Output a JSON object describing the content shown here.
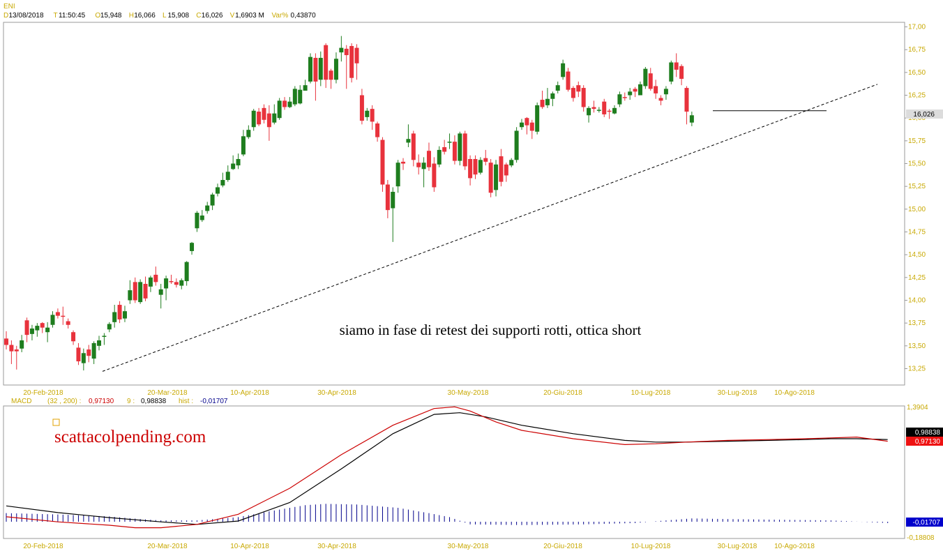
{
  "header": {
    "symbol": "ENI",
    "fields": [
      {
        "key": "D",
        "value": "13/08/2018"
      },
      {
        "key": "T",
        "value": "11:50:45"
      },
      {
        "key": "O",
        "value": "15,948"
      },
      {
        "key": "H",
        "value": "16,066"
      },
      {
        "key": "L",
        "value": "15,908"
      },
      {
        "key": "C",
        "value": "16,026"
      },
      {
        "key": "V",
        "value": "1,6903 M"
      },
      {
        "key": "Var%",
        "value": "0,43870"
      }
    ]
  },
  "chart_data": [
    {
      "type": "candlestick",
      "price_badge": "16,026",
      "y_ticks": [
        "17,00",
        "16,75",
        "16,50",
        "16,25",
        "16,00",
        "15,75",
        "15,50",
        "15,25",
        "15,00",
        "14,75",
        "14,50",
        "14,25",
        "14,00",
        "13,75",
        "13,50",
        "13,25"
      ],
      "x_ticks": [
        "20-Feb-2018",
        "20-Mar-2018",
        "10-Apr-2018",
        "30-Apr-2018",
        "30-May-2018",
        "20-Giu-2018",
        "10-Lug-2018",
        "30-Lug-2018",
        "10-Ago-2018"
      ],
      "ylim": [
        13.07,
        17.05
      ],
      "annotation": "siamo in fase di retest dei supporti rotti, ottica short",
      "candles": [
        [
          13.58,
          13.51,
          13.66,
          13.46
        ],
        [
          13.51,
          13.44,
          13.56,
          13.3
        ],
        [
          13.46,
          13.44,
          13.5,
          13.24
        ],
        [
          13.47,
          13.56,
          13.62,
          13.43
        ],
        [
          13.78,
          13.62,
          13.81,
          13.54
        ],
        [
          13.63,
          13.69,
          13.73,
          13.56
        ],
        [
          13.67,
          13.72,
          13.75,
          13.6
        ],
        [
          13.75,
          13.7,
          13.76,
          13.64
        ],
        [
          13.65,
          13.7,
          13.76,
          13.54
        ],
        [
          13.73,
          13.84,
          13.88,
          13.7
        ],
        [
          13.87,
          13.83,
          13.91,
          13.8
        ],
        [
          13.83,
          13.82,
          13.93,
          13.73
        ],
        [
          13.77,
          13.73,
          13.8,
          13.69
        ],
        [
          13.65,
          13.55,
          13.67,
          13.51
        ],
        [
          13.48,
          13.33,
          13.53,
          13.29
        ],
        [
          13.31,
          13.42,
          13.47,
          13.23
        ],
        [
          13.46,
          13.39,
          13.51,
          13.32
        ],
        [
          13.36,
          13.53,
          13.55,
          13.3
        ],
        [
          13.5,
          13.56,
          13.61,
          13.45
        ],
        [
          13.6,
          13.61,
          13.64,
          13.51
        ],
        [
          13.68,
          13.74,
          13.76,
          13.65
        ],
        [
          13.76,
          13.87,
          13.95,
          13.7
        ],
        [
          13.95,
          13.79,
          13.99,
          13.75
        ],
        [
          13.8,
          13.88,
          13.94,
          13.76
        ],
        [
          14.0,
          14.11,
          14.22,
          13.96
        ],
        [
          14.2,
          14.0,
          14.25,
          13.97
        ],
        [
          13.98,
          14.2,
          14.23,
          13.96
        ],
        [
          14.18,
          14.02,
          14.26,
          13.99
        ],
        [
          14.15,
          14.25,
          14.27,
          14.09
        ],
        [
          14.28,
          14.2,
          14.37,
          14.16
        ],
        [
          14.06,
          14.12,
          14.18,
          13.91
        ],
        [
          14.13,
          14.24,
          14.27,
          14.0
        ],
        [
          14.21,
          14.2,
          14.28,
          14.18
        ],
        [
          14.2,
          14.17,
          14.24,
          14.14
        ],
        [
          14.16,
          14.22,
          14.24,
          14.12
        ],
        [
          14.21,
          14.42,
          14.43,
          14.16
        ],
        [
          14.54,
          14.63,
          14.64,
          14.5
        ],
        [
          14.79,
          14.96,
          14.98,
          14.75
        ],
        [
          14.88,
          14.93,
          14.99,
          14.86
        ],
        [
          14.98,
          15.04,
          15.08,
          14.95
        ],
        [
          15.04,
          15.16,
          15.18,
          14.99
        ],
        [
          15.17,
          15.24,
          15.28,
          15.14
        ],
        [
          15.26,
          15.32,
          15.4,
          15.24
        ],
        [
          15.32,
          15.41,
          15.48,
          15.3
        ],
        [
          15.44,
          15.5,
          15.59,
          15.43
        ],
        [
          15.48,
          15.55,
          15.61,
          15.44
        ],
        [
          15.6,
          15.8,
          15.87,
          15.58
        ],
        [
          15.79,
          15.87,
          15.92,
          15.77
        ],
        [
          15.9,
          16.08,
          16.1,
          15.86
        ],
        [
          16.07,
          15.93,
          16.11,
          15.91
        ],
        [
          16.11,
          15.98,
          16.15,
          15.94
        ],
        [
          16.05,
          15.9,
          16.14,
          15.75
        ],
        [
          15.95,
          16.05,
          16.15,
          15.93
        ],
        [
          16.0,
          16.19,
          16.22,
          15.98
        ],
        [
          16.19,
          16.12,
          16.23,
          16.09
        ],
        [
          16.12,
          16.18,
          16.23,
          16.11
        ],
        [
          16.15,
          16.32,
          16.35,
          16.13
        ],
        [
          16.16,
          16.31,
          16.36,
          16.15
        ],
        [
          16.3,
          16.36,
          16.42,
          16.3
        ],
        [
          16.4,
          16.67,
          16.71,
          16.38
        ],
        [
          16.66,
          16.4,
          16.71,
          16.19
        ],
        [
          16.42,
          16.66,
          16.73,
          16.35
        ],
        [
          16.8,
          16.42,
          16.82,
          16.33
        ],
        [
          16.52,
          16.42,
          16.54,
          16.32
        ],
        [
          16.42,
          16.65,
          16.72,
          16.38
        ],
        [
          16.72,
          16.77,
          16.9,
          16.62
        ],
        [
          16.76,
          16.69,
          16.8,
          16.32
        ],
        [
          16.79,
          16.44,
          16.82,
          16.39
        ],
        [
          16.77,
          16.6,
          16.81,
          16.42
        ],
        [
          16.25,
          15.97,
          16.32,
          15.93
        ],
        [
          16.01,
          16.08,
          16.11,
          15.97
        ],
        [
          16.1,
          15.96,
          16.14,
          15.87
        ],
        [
          15.94,
          15.79,
          15.96,
          15.74
        ],
        [
          15.76,
          15.27,
          15.79,
          15.19
        ],
        [
          15.27,
          14.99,
          15.32,
          14.9
        ],
        [
          15.01,
          15.19,
          15.24,
          14.64
        ],
        [
          15.25,
          15.51,
          15.54,
          15.18
        ],
        [
          15.52,
          15.5,
          15.56,
          15.43
        ],
        [
          15.73,
          15.77,
          15.93,
          15.68
        ],
        [
          15.83,
          15.54,
          15.86,
          15.47
        ],
        [
          15.51,
          15.46,
          15.6,
          15.38
        ],
        [
          15.44,
          15.51,
          15.57,
          15.24
        ],
        [
          15.64,
          15.46,
          15.73,
          15.42
        ],
        [
          15.5,
          15.24,
          15.57,
          15.19
        ],
        [
          15.49,
          15.65,
          15.69,
          15.46
        ],
        [
          15.68,
          15.63,
          15.76,
          15.6
        ],
        [
          15.73,
          15.74,
          15.83,
          15.66
        ],
        [
          15.74,
          15.53,
          15.81,
          15.49
        ],
        [
          15.53,
          15.83,
          15.85,
          15.48
        ],
        [
          15.83,
          15.47,
          15.86,
          15.43
        ],
        [
          15.55,
          15.34,
          15.59,
          15.26
        ],
        [
          15.55,
          15.38,
          15.59,
          15.33
        ],
        [
          15.4,
          15.54,
          15.57,
          15.38
        ],
        [
          15.56,
          15.52,
          15.65,
          15.48
        ],
        [
          15.51,
          15.18,
          15.55,
          15.13
        ],
        [
          15.21,
          15.49,
          15.54,
          15.14
        ],
        [
          15.58,
          15.3,
          15.66,
          15.25
        ],
        [
          15.49,
          15.37,
          15.51,
          15.3
        ],
        [
          15.48,
          15.54,
          15.56,
          15.46
        ],
        [
          15.54,
          15.86,
          15.9,
          15.51
        ],
        [
          15.9,
          15.95,
          15.99,
          15.87
        ],
        [
          16.0,
          15.92,
          16.01,
          15.82
        ],
        [
          15.95,
          15.86,
          15.98,
          15.77
        ],
        [
          15.85,
          16.14,
          16.17,
          15.82
        ],
        [
          16.2,
          16.12,
          16.3,
          16.1
        ],
        [
          16.14,
          16.21,
          16.33,
          16.11
        ],
        [
          16.21,
          16.27,
          16.29,
          16.13
        ],
        [
          16.3,
          16.36,
          16.4,
          16.27
        ],
        [
          16.45,
          16.6,
          16.64,
          16.42
        ],
        [
          16.51,
          16.31,
          16.55,
          16.29
        ],
        [
          16.33,
          16.22,
          16.35,
          16.18
        ],
        [
          16.36,
          16.29,
          16.4,
          16.23
        ],
        [
          16.33,
          16.12,
          16.36,
          16.07
        ],
        [
          16.03,
          16.11,
          16.13,
          15.95
        ],
        [
          16.12,
          16.1,
          16.19,
          16.06
        ],
        [
          16.09,
          16.09,
          16.12,
          16.06
        ],
        [
          16.18,
          16.04,
          16.21,
          16.01
        ],
        [
          16.08,
          16.07,
          16.1,
          15.99
        ],
        [
          16.05,
          16.11,
          16.14,
          16.04
        ],
        [
          16.15,
          16.26,
          16.29,
          16.12
        ],
        [
          16.23,
          16.22,
          16.28,
          16.19
        ],
        [
          16.25,
          16.29,
          16.33,
          16.2
        ],
        [
          16.32,
          16.29,
          16.34,
          16.23
        ],
        [
          16.25,
          16.37,
          16.4,
          16.25
        ],
        [
          16.35,
          16.54,
          16.56,
          16.32
        ],
        [
          16.49,
          16.32,
          16.55,
          16.3
        ],
        [
          16.35,
          16.27,
          16.42,
          16.21
        ],
        [
          16.22,
          16.19,
          16.25,
          16.14
        ],
        [
          16.26,
          16.32,
          16.35,
          16.2
        ],
        [
          16.4,
          16.61,
          16.63,
          16.37
        ],
        [
          16.61,
          16.53,
          16.71,
          16.45
        ],
        [
          16.57,
          16.43,
          16.59,
          16.36
        ],
        [
          16.33,
          16.07,
          16.35,
          15.93
        ],
        [
          15.95,
          16.03,
          16.07,
          15.91
        ]
      ],
      "series": [
        {
          "name": "support",
          "values": [
            16.08,
            16.08
          ]
        },
        {
          "name": "trendline",
          "values": [
            13.22,
            16.37
          ]
        }
      ]
    },
    {
      "type": "macd",
      "label": "MACD",
      "params": "(32 , 200) :",
      "macd_value": "0,97130",
      "signal_label": "9 :",
      "signal_value": "0,98838",
      "hist_label": "hist :",
      "hist_value": "-0,01707",
      "badge_signal": "0,98838",
      "badge_macd": "0,97130",
      "badge_hist": "-0,01707",
      "y_ticks": [
        "1,3904",
        "-0,18808"
      ],
      "x_ticks": [
        "20-Feb-2018",
        "20-Mar-2018",
        "10-Apr-2018",
        "30-Apr-2018",
        "30-May-2018",
        "20-Giu-2018",
        "10-Lug-2018",
        "30-Lug-2018",
        "10-Ago-2018"
      ],
      "ylim": [
        -0.18808,
        1.3904
      ],
      "signal_series": [
        [
          0,
          0.2
        ],
        [
          10,
          0.12
        ],
        [
          20,
          0.06
        ],
        [
          30,
          0.01
        ],
        [
          37,
          -0.02
        ],
        [
          45,
          0.02
        ],
        [
          55,
          0.24
        ],
        [
          65,
          0.64
        ],
        [
          75,
          1.06
        ],
        [
          83,
          1.29
        ],
        [
          88,
          1.31
        ],
        [
          93,
          1.26
        ],
        [
          100,
          1.16
        ],
        [
          110,
          1.06
        ],
        [
          120,
          0.98
        ],
        [
          126,
          0.96
        ],
        [
          132,
          0.96
        ],
        [
          140,
          0.97
        ],
        [
          148,
          0.98
        ],
        [
          155,
          0.99
        ],
        [
          160,
          1.0
        ],
        [
          165,
          1.0
        ],
        [
          171,
          0.99
        ]
      ],
      "macd_series": [
        [
          0,
          0.07
        ],
        [
          10,
          0.01
        ],
        [
          20,
          -0.03
        ],
        [
          25,
          -0.06
        ],
        [
          30,
          -0.06
        ],
        [
          37,
          -0.02
        ],
        [
          45,
          0.1
        ],
        [
          55,
          0.41
        ],
        [
          65,
          0.81
        ],
        [
          75,
          1.16
        ],
        [
          83,
          1.36
        ],
        [
          87,
          1.38
        ],
        [
          90,
          1.33
        ],
        [
          95,
          1.2
        ],
        [
          100,
          1.1
        ],
        [
          110,
          1.0
        ],
        [
          120,
          0.93
        ],
        [
          126,
          0.94
        ],
        [
          132,
          0.96
        ],
        [
          140,
          0.98
        ],
        [
          148,
          0.99
        ],
        [
          155,
          1.0
        ],
        [
          160,
          1.01
        ],
        [
          165,
          1.02
        ],
        [
          171,
          0.97
        ]
      ],
      "hist_series": [
        [
          0,
          0.13
        ],
        [
          10,
          0.11
        ],
        [
          20,
          0.08
        ],
        [
          26,
          0.04
        ],
        [
          30,
          0.02
        ],
        [
          37,
          0.02
        ],
        [
          45,
          0.07
        ],
        [
          52,
          0.17
        ],
        [
          58,
          0.25
        ],
        [
          62,
          0.27
        ],
        [
          68,
          0.26
        ],
        [
          76,
          0.21
        ],
        [
          82,
          0.13
        ],
        [
          86,
          0.07
        ],
        [
          90,
          -0.04
        ],
        [
          100,
          -0.05
        ],
        [
          112,
          -0.04
        ],
        [
          122,
          -0.02
        ],
        [
          128,
          0.02
        ],
        [
          133,
          0.05
        ],
        [
          140,
          0.04
        ],
        [
          150,
          0.03
        ],
        [
          160,
          0.02
        ],
        [
          171,
          -0.02
        ]
      ]
    }
  ],
  "brand": {
    "text": "scattacolpending.com",
    "color": "#cc0000"
  },
  "colors": {
    "bull": "#1e7d1e",
    "bear": "#e8323c",
    "signal": "#000000",
    "macd": "#cc0000",
    "hist": "#00008b",
    "tick": "#c8a800"
  }
}
